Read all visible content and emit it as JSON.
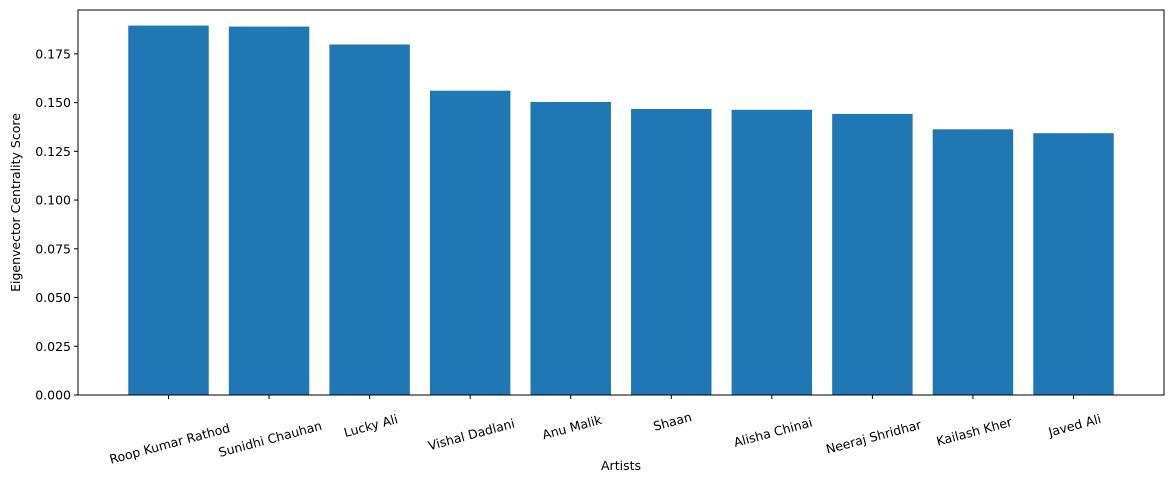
{
  "chart_data": {
    "type": "bar",
    "categories": [
      "Roop Kumar Rathod",
      "Sunidhi Chauhan",
      "Lucky Ali",
      "Vishal Dadlani",
      "Anu Malik",
      "Shaan",
      "Alisha Chinai",
      "Neeraj Shridhar",
      "Kailash Kher",
      "Javed Ali"
    ],
    "values": [
      0.1895,
      0.189,
      0.1798,
      0.1561,
      0.1503,
      0.1467,
      0.1463,
      0.1442,
      0.1363,
      0.1343
    ],
    "title": "",
    "xlabel": "Artists",
    "ylabel": "Eigenvector Centrality Score",
    "ylim": [
      0,
      0.1975
    ],
    "yticks": [
      0.0,
      0.025,
      0.05,
      0.075,
      0.1,
      0.125,
      0.15,
      0.175
    ],
    "ytick_labels": [
      "0.000",
      "0.025",
      "0.050",
      "0.075",
      "0.100",
      "0.125",
      "0.150",
      "0.175"
    ],
    "xtick_rotation_deg": 15,
    "bar_color": "#1f77b4",
    "grid": false,
    "legend": "none"
  }
}
